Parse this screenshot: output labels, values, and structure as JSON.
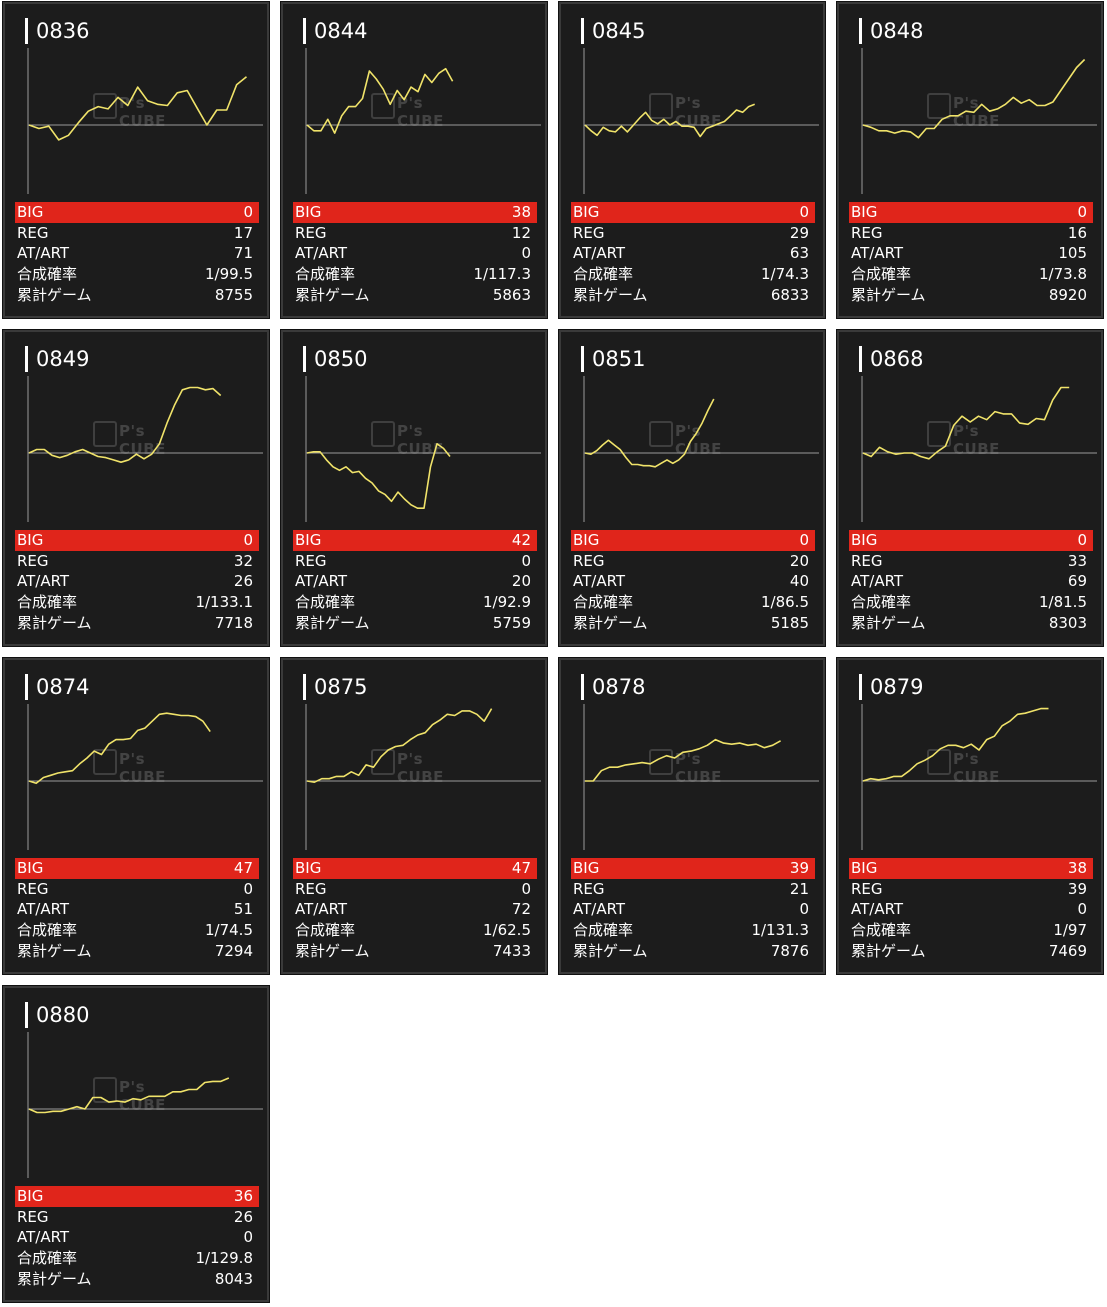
{
  "colors": {
    "background": "#1c1c1c",
    "line": "#f0e36a",
    "axis": "#9a9a9a",
    "big_row": "#e0251b",
    "text": "#ffffff"
  },
  "labels": {
    "big": "BIG",
    "reg": "REG",
    "at": "AT/ART",
    "rate": "合成確率",
    "games": "累計ゲーム"
  },
  "watermark": {
    "brand": "P's CUBE"
  },
  "chart_data": [
    {
      "type": "line",
      "title": "0836",
      "stats": {
        "big": "0",
        "reg": "17",
        "at": "71",
        "rate": "1/99.5",
        "games": "8755"
      },
      "y": [
        0,
        -3,
        -1,
        -13,
        -9,
        2,
        12,
        16,
        14,
        24,
        17,
        33,
        21,
        18,
        17,
        28,
        30,
        15,
        0,
        13,
        13,
        35,
        42
      ]
    },
    {
      "type": "line",
      "title": "0844",
      "stats": {
        "big": "38",
        "reg": "12",
        "at": "0",
        "rate": "1/117.3",
        "games": "5863"
      },
      "y": [
        0,
        -5,
        -5,
        5,
        -7,
        8,
        16,
        16,
        23,
        47,
        40,
        31,
        18,
        30,
        22,
        33,
        29,
        44,
        37,
        45,
        49,
        38
      ]
    },
    {
      "type": "line",
      "title": "0845",
      "stats": {
        "big": "0",
        "reg": "29",
        "at": "63",
        "rate": "1/74.3",
        "games": "6833"
      },
      "y": [
        0,
        -5,
        -9,
        -2,
        -5,
        -6,
        -1,
        -6,
        0,
        6,
        11,
        4,
        1,
        5,
        0,
        3,
        -1,
        -1,
        -2,
        -10,
        -3,
        -1,
        1,
        3,
        8,
        13,
        11,
        16,
        18
      ]
    },
    {
      "type": "line",
      "title": "0848",
      "stats": {
        "big": "0",
        "reg": "16",
        "at": "105",
        "rate": "1/73.8",
        "games": "8920"
      },
      "y": [
        0,
        -2,
        -5,
        -5,
        -7,
        -5,
        -6,
        -11,
        -3,
        -3,
        5,
        8,
        8,
        12,
        11,
        18,
        12,
        14,
        18,
        24,
        19,
        22,
        17,
        17,
        20,
        30,
        40,
        50,
        57
      ]
    },
    {
      "type": "line",
      "title": "0849",
      "stats": {
        "big": "0",
        "reg": "32",
        "at": "26",
        "rate": "1/133.1",
        "games": "7718"
      },
      "y": [
        0,
        3,
        3,
        -2,
        -4,
        -2,
        1,
        3,
        0,
        -3,
        -4,
        -6,
        -8,
        -6,
        -1,
        -5,
        -1,
        8,
        26,
        42,
        55,
        57,
        57,
        55,
        56,
        50
      ]
    },
    {
      "type": "line",
      "title": "0850",
      "stats": {
        "big": "42",
        "reg": "0",
        "at": "20",
        "rate": "1/92.9",
        "games": "5759"
      },
      "y": [
        0,
        1,
        1,
        -6,
        -12,
        -15,
        -12,
        -17,
        -16,
        -22,
        -26,
        -33,
        -36,
        -42,
        -34,
        -40,
        -45,
        -48,
        -48,
        -12,
        8,
        4,
        -3
      ]
    },
    {
      "type": "line",
      "title": "0851",
      "stats": {
        "big": "0",
        "reg": "20",
        "at": "40",
        "rate": "1/86.5",
        "games": "5185"
      },
      "y": [
        0,
        -1,
        2,
        7,
        11,
        7,
        3,
        -4,
        -10,
        -10,
        -11,
        -11,
        -12,
        -9,
        -6,
        -9,
        -6,
        -1,
        10,
        17,
        26,
        37,
        47
      ]
    },
    {
      "type": "line",
      "title": "0868",
      "stats": {
        "big": "0",
        "reg": "33",
        "at": "69",
        "rate": "1/81.5",
        "games": "8303"
      },
      "y": [
        0,
        -3,
        5,
        1,
        -1,
        0,
        0,
        -3,
        -5,
        1,
        6,
        24,
        32,
        27,
        32,
        29,
        36,
        34,
        34,
        26,
        25,
        30,
        29,
        46,
        57,
        57
      ]
    },
    {
      "type": "line",
      "title": "0874",
      "stats": {
        "big": "47",
        "reg": "0",
        "at": "51",
        "rate": "1/74.5",
        "games": "7294"
      },
      "y": [
        0,
        -2,
        3,
        5,
        7,
        8,
        9,
        15,
        20,
        26,
        23,
        32,
        36,
        36,
        37,
        44,
        46,
        52,
        58,
        59,
        58,
        57,
        57,
        56,
        52,
        43
      ]
    },
    {
      "type": "line",
      "title": "0875",
      "stats": {
        "big": "47",
        "reg": "0",
        "at": "72",
        "rate": "1/62.5",
        "games": "7433"
      },
      "y": [
        0,
        -1,
        2,
        2,
        4,
        4,
        8,
        5,
        14,
        12,
        21,
        27,
        30,
        31,
        36,
        40,
        42,
        49,
        53,
        58,
        57,
        61,
        61,
        58,
        52,
        63
      ]
    },
    {
      "type": "line",
      "title": "0878",
      "stats": {
        "big": "39",
        "reg": "21",
        "at": "0",
        "rate": "1/131.3",
        "games": "7876"
      },
      "y": [
        0,
        0,
        9,
        12,
        12,
        14,
        15,
        16,
        15,
        19,
        22,
        20,
        25,
        26,
        28,
        31,
        36,
        33,
        32,
        33,
        31,
        32,
        29,
        31,
        35
      ]
    },
    {
      "type": "line",
      "title": "0879",
      "stats": {
        "big": "38",
        "reg": "39",
        "at": "0",
        "rate": "1/97",
        "games": "7469"
      },
      "y": [
        0,
        2,
        1,
        2,
        4,
        4,
        9,
        15,
        18,
        22,
        28,
        31,
        31,
        29,
        32,
        27,
        36,
        39,
        48,
        52,
        58,
        59,
        61,
        63,
        63
      ]
    },
    {
      "type": "line",
      "title": "0880",
      "stats": {
        "big": "36",
        "reg": "26",
        "at": "0",
        "rate": "1/129.8",
        "games": "8043"
      },
      "y": [
        0,
        -3,
        -3,
        -2,
        -2,
        0,
        2,
        0,
        10,
        10,
        6,
        7,
        6,
        9,
        8,
        11,
        11,
        11,
        15,
        15,
        17,
        17,
        23,
        24,
        24,
        27
      ]
    }
  ]
}
